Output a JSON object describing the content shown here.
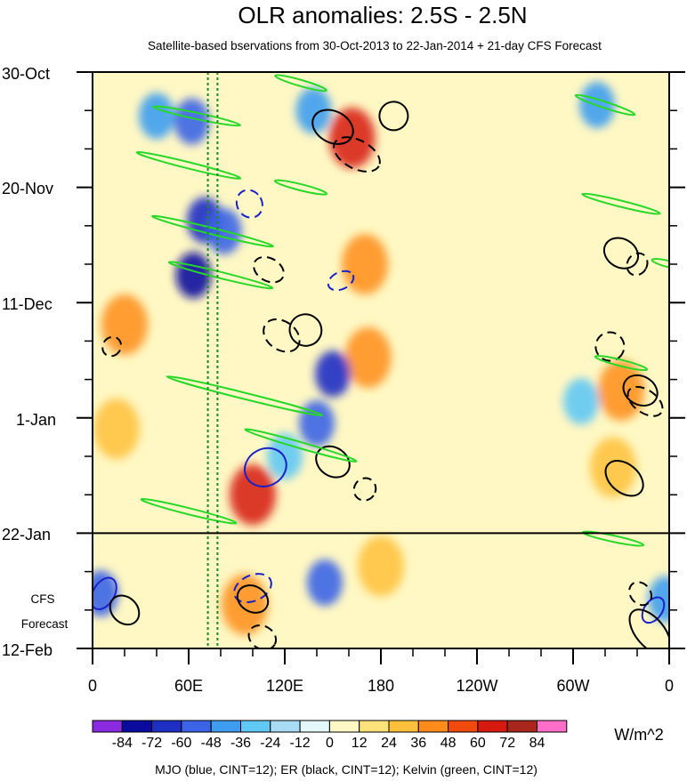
{
  "chart_data": {
    "type": "heatmap",
    "title": "OLR anomalies: 2.5S - 2.5N",
    "subtitle": "Satellite-based bservations from 30-Oct-2013 to 22-Jan-2014 + 21-day CFS Forecast",
    "x_ticks": [
      "0",
      "60E",
      "120E",
      "180",
      "120W",
      "60W",
      "0"
    ],
    "x_tick_values": [
      0,
      60,
      120,
      180,
      240,
      300,
      360
    ],
    "xlim": [
      0,
      360
    ],
    "y_ticks": [
      "30-Oct",
      "20-Nov",
      "11-Dec",
      "1-Jan",
      "22-Jan",
      "12-Feb"
    ],
    "y_tick_values": [
      0,
      21,
      42,
      63,
      84,
      105
    ],
    "ylim": [
      0,
      105
    ],
    "observation_end_label": "22-Jan",
    "observation_end_day": 84,
    "forecast_label_line1": "CFS",
    "forecast_label_line2": "Forecast",
    "dashed_reference_lon": [
      72,
      78
    ],
    "colorbar": {
      "levels": [
        "-84",
        "-72",
        "-60",
        "-48",
        "-36",
        "-24",
        "-12",
        "0",
        "12",
        "24",
        "36",
        "48",
        "60",
        "72",
        "84"
      ],
      "colors": [
        "#8a2be2",
        "#0a0a9e",
        "#1e2fc4",
        "#3c64e6",
        "#3f9df0",
        "#5fc8f5",
        "#a8dcf4",
        "#e4f7fa",
        "#fff8c4",
        "#ffe27a",
        "#ffbf3a",
        "#ff8c1a",
        "#f14a0f",
        "#d61a10",
        "#a8261c",
        "#ff6ec7"
      ],
      "units": "W/m^2"
    },
    "footer": "MJO (blue, CINT=12); ER (black, CINT=12); Kelvin (green, CINT=12)",
    "features": {
      "negative_anomalies": [
        {
          "lon": 40,
          "day": 8,
          "value": -48
        },
        {
          "lon": 62,
          "day": 9,
          "value": -60
        },
        {
          "lon": 70,
          "day": 27,
          "value": -72
        },
        {
          "lon": 63,
          "day": 37,
          "value": -84
        },
        {
          "lon": 82,
          "day": 29,
          "value": -60
        },
        {
          "lon": 138,
          "day": 7,
          "value": -48
        },
        {
          "lon": 150,
          "day": 55,
          "value": -72
        },
        {
          "lon": 140,
          "day": 64,
          "value": -60
        },
        {
          "lon": 145,
          "day": 93,
          "value": -60
        },
        {
          "lon": 5,
          "day": 95,
          "value": -60
        },
        {
          "lon": 315,
          "day": 6,
          "value": -48
        },
        {
          "lon": 305,
          "day": 60,
          "value": -36
        },
        {
          "lon": 358,
          "day": 96,
          "value": -48
        },
        {
          "lon": 120,
          "day": 70,
          "value": -36
        }
      ],
      "positive_anomalies": [
        {
          "lon": 162,
          "day": 12,
          "value": 60
        },
        {
          "lon": 170,
          "day": 35,
          "value": 36
        },
        {
          "lon": 172,
          "day": 52,
          "value": 36
        },
        {
          "lon": 95,
          "day": 97,
          "value": 36
        },
        {
          "lon": 330,
          "day": 58,
          "value": 36
        },
        {
          "lon": 325,
          "day": 72,
          "value": 24
        },
        {
          "lon": 20,
          "day": 46,
          "value": 36
        },
        {
          "lon": 180,
          "day": 90,
          "value": 24
        },
        {
          "lon": 100,
          "day": 77,
          "value": 60
        },
        {
          "lon": 15,
          "day": 65,
          "value": 24
        }
      ],
      "er_contours": [
        {
          "lon": 150,
          "day": 10,
          "rx": 24,
          "ry": 5.5,
          "angle": -62,
          "dashed": false
        },
        {
          "lon": 165,
          "day": 15,
          "rx": 28,
          "ry": 5,
          "angle": -62,
          "dashed": true
        },
        {
          "lon": 188,
          "day": 8,
          "rx": 16,
          "ry": 5,
          "angle": -62,
          "dashed": false
        },
        {
          "lon": 133,
          "day": 47,
          "rx": 18,
          "ry": 5.5,
          "angle": -55,
          "dashed": false
        },
        {
          "lon": 118,
          "day": 48,
          "rx": 22,
          "ry": 5,
          "angle": -55,
          "dashed": true
        },
        {
          "lon": 150,
          "day": 71,
          "rx": 20,
          "ry": 5,
          "angle": -55,
          "dashed": false
        },
        {
          "lon": 170,
          "day": 76,
          "rx": 12,
          "ry": 4,
          "angle": -55,
          "dashed": true
        },
        {
          "lon": 100,
          "day": 96,
          "rx": 18,
          "ry": 4.5,
          "angle": -60,
          "dashed": false
        },
        {
          "lon": 106,
          "day": 103,
          "rx": 16,
          "ry": 4,
          "angle": -60,
          "dashed": true
        },
        {
          "lon": 20,
          "day": 98,
          "rx": 18,
          "ry": 4.5,
          "angle": -45,
          "dashed": false
        },
        {
          "lon": 330,
          "day": 33,
          "rx": 20,
          "ry": 5,
          "angle": -60,
          "dashed": false
        },
        {
          "lon": 340,
          "day": 35,
          "rx": 11,
          "ry": 4,
          "angle": -60,
          "dashed": true
        },
        {
          "lon": 323,
          "day": 50,
          "rx": 16,
          "ry": 5,
          "angle": -60,
          "dashed": true
        },
        {
          "lon": 342,
          "day": 58,
          "rx": 20,
          "ry": 5,
          "angle": -60,
          "dashed": false
        },
        {
          "lon": 332,
          "day": 74,
          "rx": 24,
          "ry": 5,
          "angle": -50,
          "dashed": false
        },
        {
          "lon": 345,
          "day": 60,
          "rx": 22,
          "ry": 4,
          "angle": -55,
          "dashed": true
        },
        {
          "lon": 348,
          "day": 102,
          "rx": 30,
          "ry": 5,
          "angle": -40,
          "dashed": false
        },
        {
          "lon": 342,
          "day": 95,
          "rx": 14,
          "ry": 3.5,
          "angle": -40,
          "dashed": true
        },
        {
          "lon": 12,
          "day": 50,
          "rx": 10,
          "ry": 3.5,
          "angle": -55,
          "dashed": true
        },
        {
          "lon": 110,
          "day": 36,
          "rx": 18,
          "ry": 4,
          "angle": -60,
          "dashed": true
        }
      ],
      "mjo_contours": [
        {
          "lon": 98,
          "day": 24,
          "rx": 14,
          "ry": 5,
          "angle": 60,
          "dashed": true
        },
        {
          "lon": 155,
          "day": 38,
          "rx": 15,
          "ry": 3,
          "angle": 65,
          "dashed": true
        },
        {
          "lon": 108,
          "day": 72,
          "rx": 24,
          "ry": 6.5,
          "angle": 62,
          "dashed": false
        },
        {
          "lon": 100,
          "day": 94,
          "rx": 22,
          "ry": 4.5,
          "angle": 65,
          "dashed": true
        },
        {
          "lon": 7,
          "day": 95,
          "rx": 12,
          "ry": 6,
          "angle": -60,
          "dashed": false
        },
        {
          "lon": 350,
          "day": 98,
          "rx": 10,
          "ry": 5,
          "angle": -55,
          "dashed": false
        }
      ],
      "kelvin_bands": [
        {
          "lon": 65,
          "day": 8,
          "length": 100,
          "angle": -12
        },
        {
          "lon": 60,
          "day": 17,
          "length": 120,
          "angle": -14
        },
        {
          "lon": 75,
          "day": 29,
          "length": 140,
          "angle": -14
        },
        {
          "lon": 80,
          "day": 37,
          "length": 120,
          "angle": -14
        },
        {
          "lon": 95,
          "day": 59,
          "length": 180,
          "angle": -14
        },
        {
          "lon": 130,
          "day": 68,
          "length": 130,
          "angle": -16
        },
        {
          "lon": 60,
          "day": 80,
          "length": 110,
          "angle": -14
        },
        {
          "lon": 320,
          "day": 6,
          "length": 70,
          "angle": -18
        },
        {
          "lon": 330,
          "day": 24,
          "length": 90,
          "angle": -14
        },
        {
          "lon": 325,
          "day": 85,
          "length": 70,
          "angle": -12
        },
        {
          "lon": 130,
          "day": 2,
          "length": 60,
          "angle": -16
        },
        {
          "lon": 130,
          "day": 21,
          "length": 60,
          "angle": -14
        },
        {
          "lon": 360,
          "day": 35,
          "length": 40,
          "angle": -14
        },
        {
          "lon": 330,
          "day": 53,
          "length": 60,
          "angle": -14
        }
      ]
    }
  }
}
